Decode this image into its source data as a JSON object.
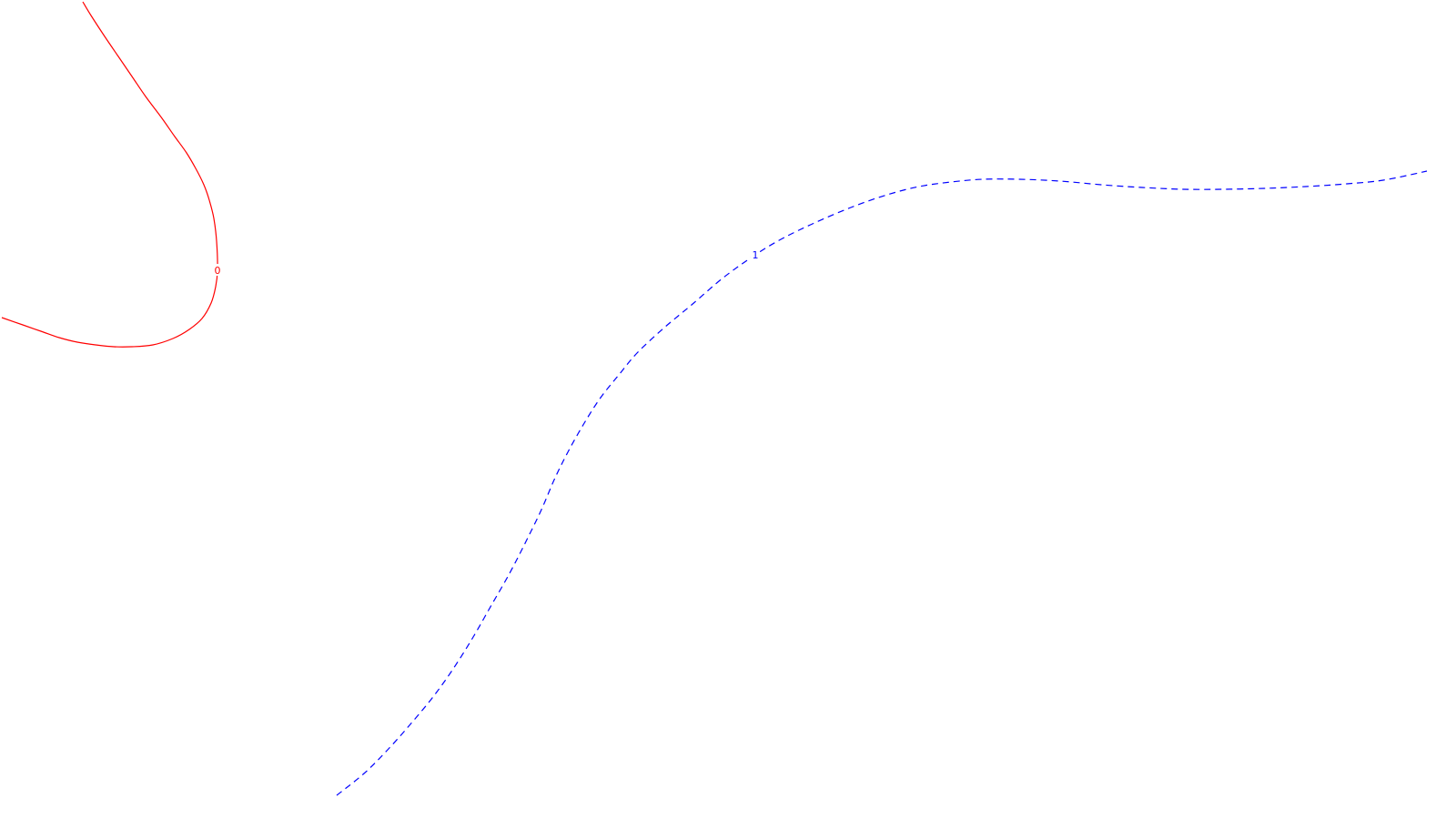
{
  "chart_data": {
    "type": "line",
    "grid": false,
    "series": [
      {
        "label": "0",
        "color": "#ff0000",
        "dash": "solid",
        "x": [
          91,
          100,
          115,
          130,
          145,
          160,
          178,
          192,
          205,
          215,
          224,
          230,
          235,
          238,
          239,
          237,
          232,
          222,
          208,
          190,
          168,
          145,
          125,
          105,
          85,
          65,
          45,
          25,
          2
        ],
        "y": [
          2,
          17,
          40,
          62,
          84,
          106,
          130,
          150,
          168,
          185,
          203,
          220,
          240,
          265,
          297,
          315,
          333,
          350,
          362,
          372,
          379,
          381,
          381,
          379,
          376,
          371,
          364,
          357,
          349
        ]
      },
      {
        "label": "1",
        "color": "#0000ff",
        "dash": "dashed",
        "x": [
          370,
          400,
          425,
          450,
          475,
          498,
          520,
          540,
          560,
          578,
          595,
          610,
          625,
          642,
          660,
          680,
          700,
          730,
          760,
          795,
          830,
          860,
          895,
          935,
          975,
          1010,
          1045,
          1080,
          1120,
          1165,
          1210,
          1255,
          1300,
          1345,
          1390,
          1435,
          1480,
          1520,
          1568
        ],
        "y": [
          874,
          850,
          825,
          797,
          767,
          735,
          700,
          665,
          630,
          595,
          560,
          525,
          495,
          465,
          437,
          412,
          388,
          360,
          335,
          305,
          280,
          262,
          245,
          228,
          214,
          205,
          200,
          197,
          197,
          199,
          203,
          206,
          208,
          208,
          207,
          205,
          202,
          198,
          188
        ]
      }
    ]
  }
}
